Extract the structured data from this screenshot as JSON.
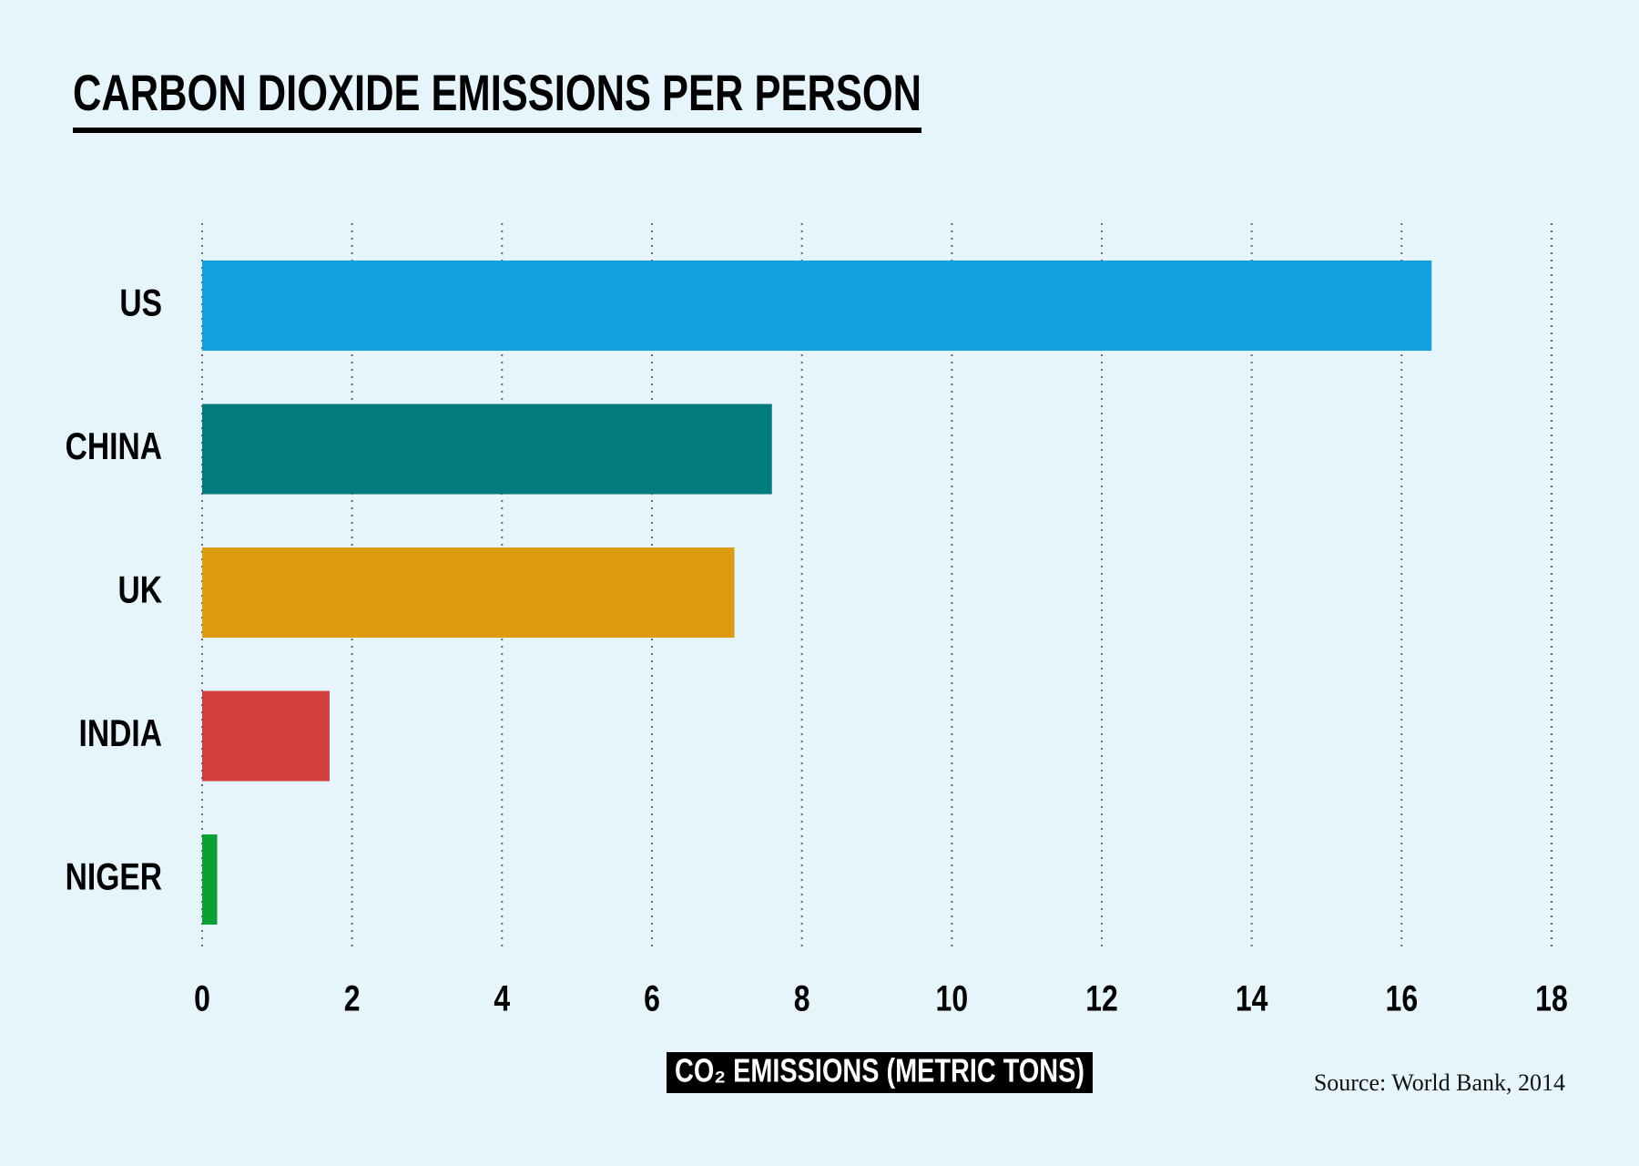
{
  "chart_data": {
    "type": "hbar",
    "title": "CARBON DIOXIDE EMISSIONS PER PERSON",
    "categories": [
      "US",
      "CHINA",
      "UK",
      "INDIA",
      "NIGER"
    ],
    "values": [
      16.4,
      7.6,
      7.1,
      1.7,
      0.2
    ],
    "colors": [
      "#12a0de",
      "#027b7f",
      "#de9b0d",
      "#d13e3d",
      "#08a233"
    ],
    "xlim": [
      0,
      18
    ],
    "xticks": [
      0,
      2,
      4,
      6,
      8,
      10,
      12,
      14,
      16,
      18
    ],
    "grid": true,
    "xlabel": "CO₂ EMISSIONS (METRIC TONS)",
    "source": "Source: World Bank, 2014"
  }
}
